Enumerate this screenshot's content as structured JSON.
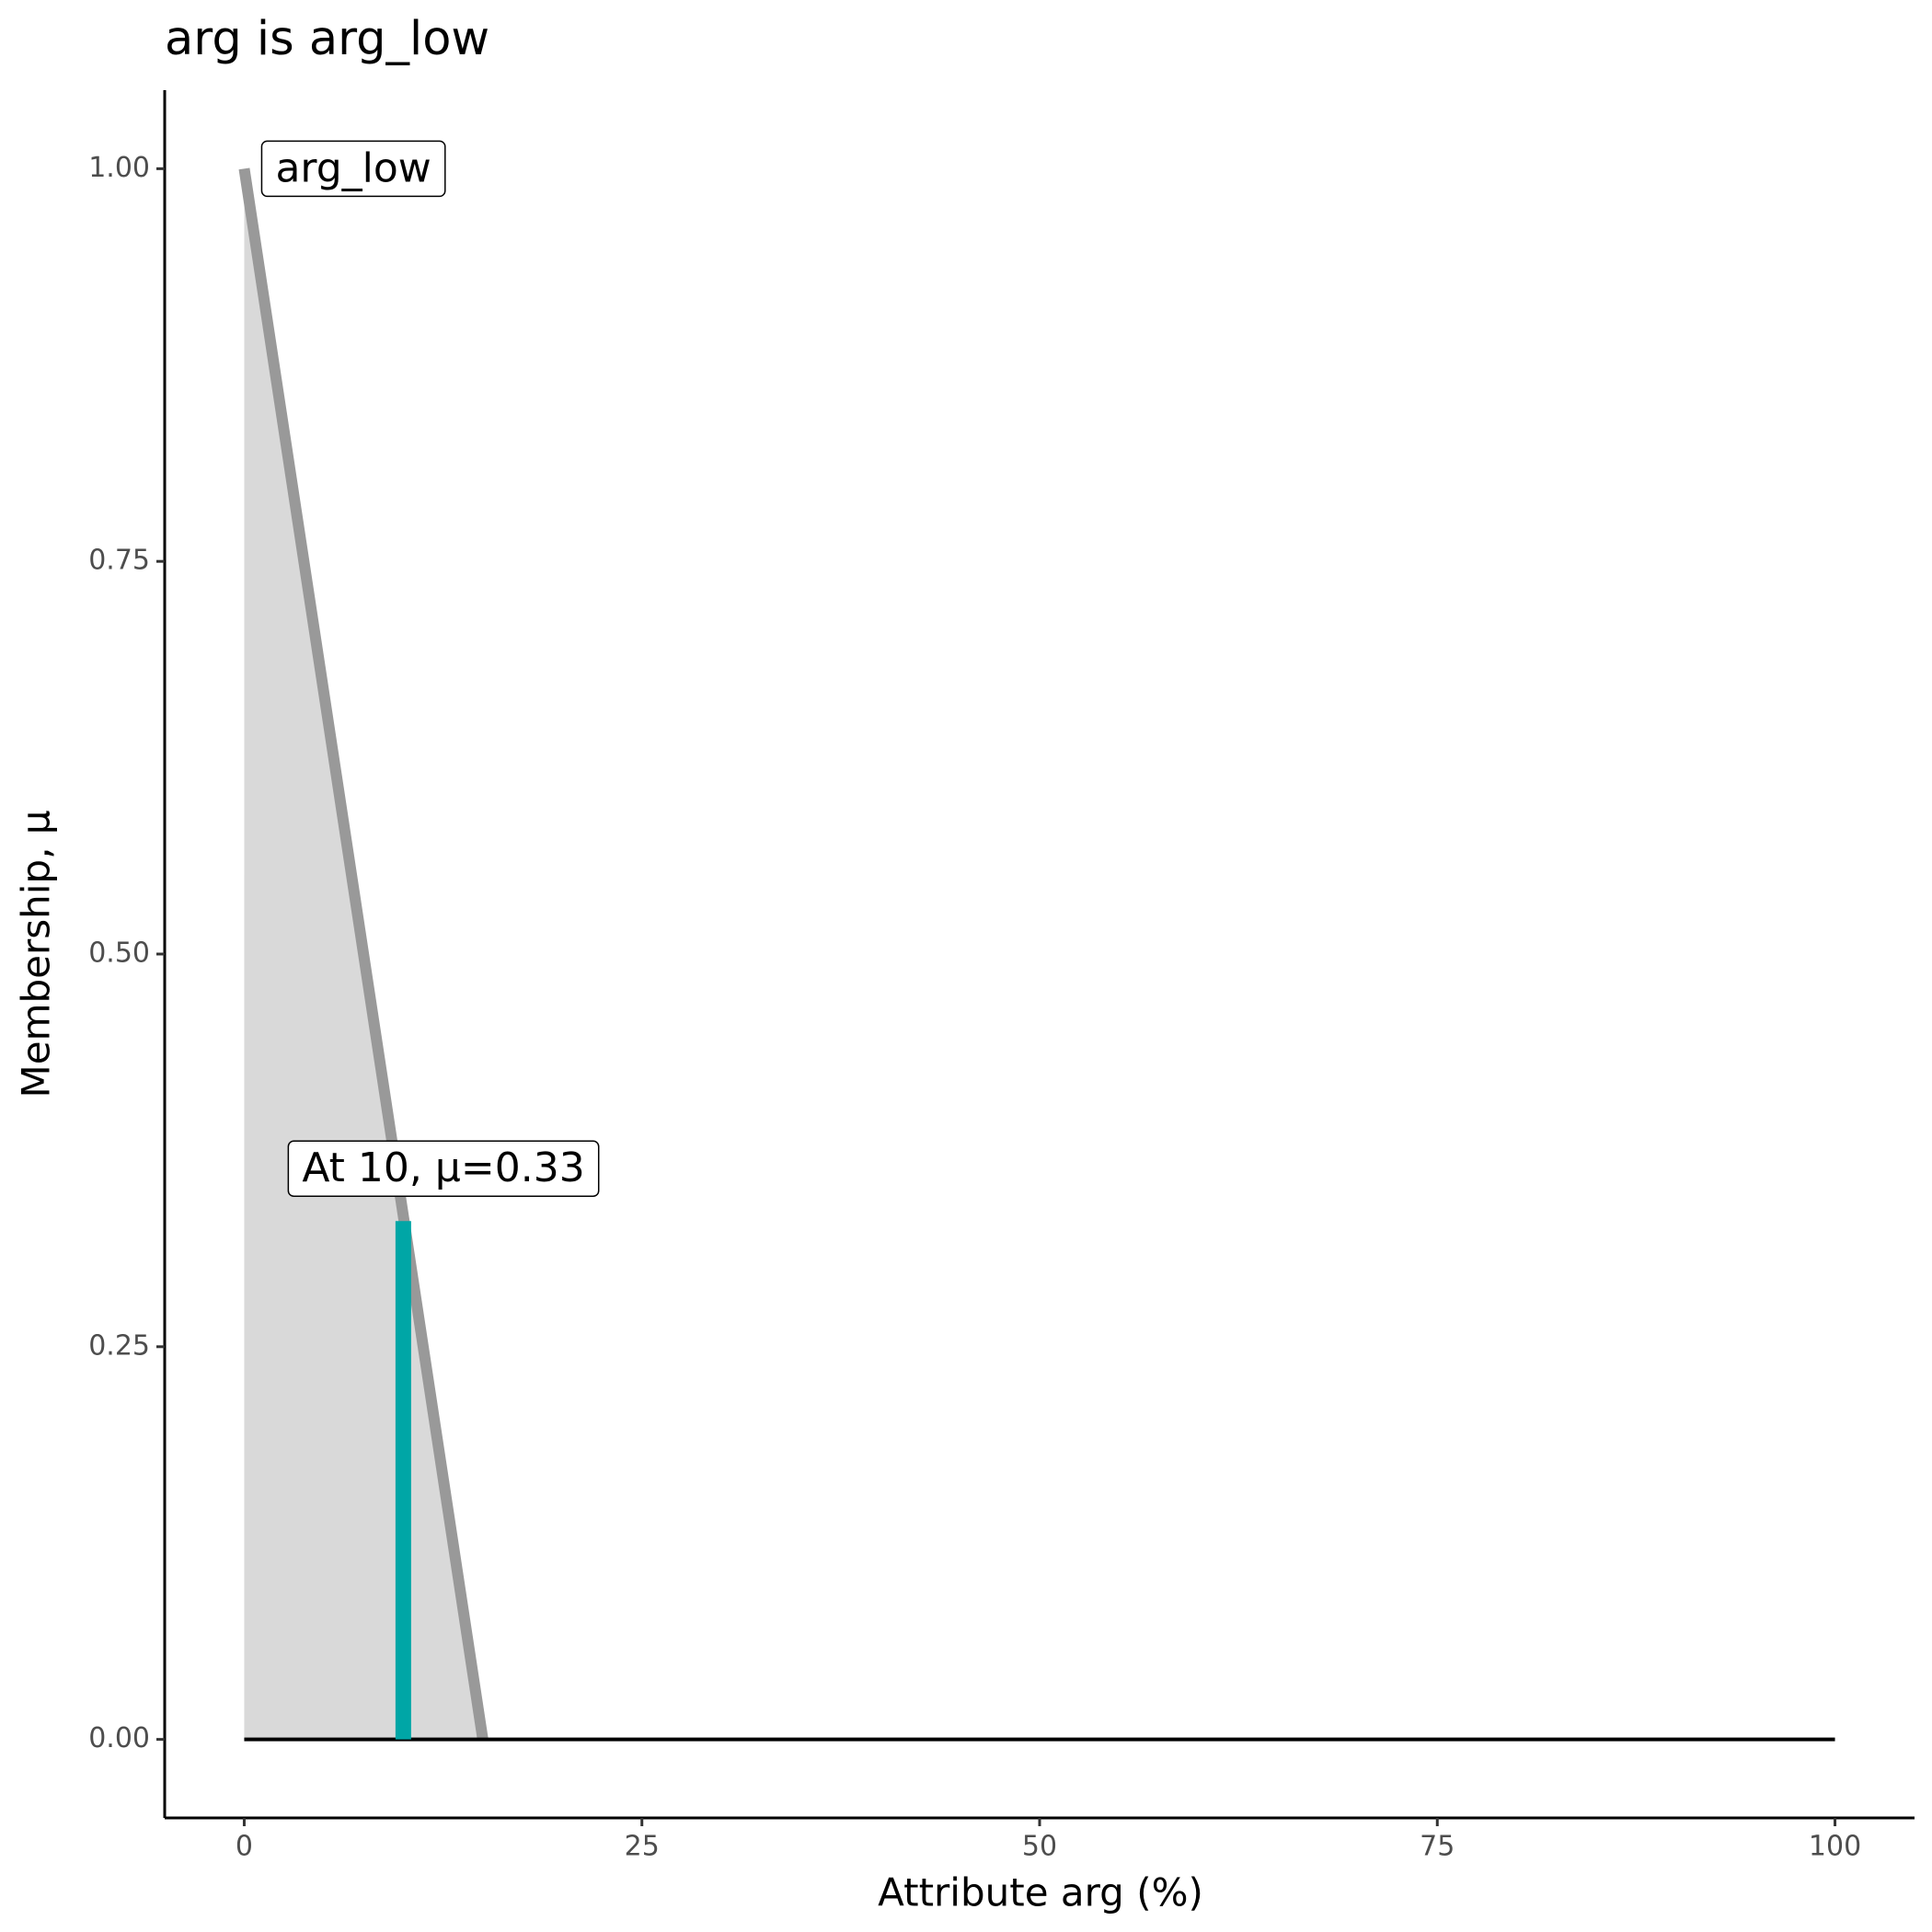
{
  "chart_data": {
    "type": "line",
    "title": "arg is arg_low",
    "x_label": "Attribute arg (%)",
    "y_label": "Membership, μ",
    "xlim": [
      -5,
      105
    ],
    "ylim": [
      -0.05,
      1.05
    ],
    "xticks": [
      0,
      25,
      50,
      75,
      100
    ],
    "yticks": [
      {
        "value": 0,
        "label": "0.00"
      },
      {
        "value": 0.25,
        "label": "0.25"
      },
      {
        "value": 0.5,
        "label": "0.50"
      },
      {
        "value": 0.75,
        "label": "0.75"
      },
      {
        "value": 1,
        "label": "1.00"
      }
    ],
    "series": [
      {
        "name": "arg_low",
        "color": "#999999",
        "fill": "#d9d9d9",
        "x": [
          0,
          15
        ],
        "values": [
          1,
          0
        ]
      }
    ],
    "baseline": {
      "color": "#000000",
      "x": [
        0,
        100
      ],
      "values": [
        0,
        0
      ]
    },
    "marker": {
      "label": "At 10, μ=0.33",
      "color": "#00a6a6",
      "x": 10,
      "value": 0.33
    }
  }
}
